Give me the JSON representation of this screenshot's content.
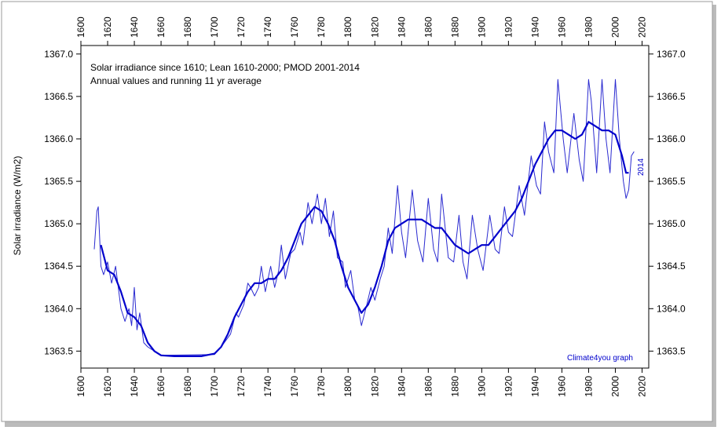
{
  "chart_data": {
    "type": "line",
    "subtitle": [
      "Solar irradiance since 1610; Lean 1610-2000; PMOD 2001-2014",
      "Annual values and running 11 yr average"
    ],
    "ylabel": "Solar irradiance (W/m2)",
    "annotations": [
      "Climate4you graph",
      "2014"
    ],
    "xlim": [
      1600,
      2025
    ],
    "xticks": [
      1600,
      1620,
      1640,
      1660,
      1680,
      1700,
      1720,
      1740,
      1760,
      1780,
      1800,
      1820,
      1840,
      1860,
      1880,
      1900,
      1920,
      1940,
      1960,
      1980,
      2000,
      2020
    ],
    "ylim": [
      1363.3,
      1367.1
    ],
    "yticks": [
      1363.5,
      {
        "value": 1364,
        "label": "1364.0"
      },
      1364.5,
      {
        "value": 1365,
        "label": "1365.0"
      },
      1365.5,
      {
        "value": 1366,
        "label": "1366.0"
      },
      1366.5,
      {
        "value": 1367,
        "label": "1367.0"
      }
    ],
    "series": [
      {
        "color": "#2a2ad0",
        "width": 1,
        "x": [
          1610,
          1612,
          1613,
          1615,
          1617,
          1620,
          1623,
          1626,
          1630,
          1633,
          1636,
          1638,
          1640,
          1642,
          1644,
          1647,
          1650,
          1655,
          1660,
          1700,
          1705,
          1712,
          1716,
          1718,
          1722,
          1725,
          1727,
          1730,
          1733,
          1735,
          1738,
          1742,
          1745,
          1748,
          1750,
          1753,
          1757,
          1760,
          1764,
          1766,
          1770,
          1773,
          1777,
          1780,
          1783,
          1786,
          1789,
          1792,
          1796,
          1798,
          1802,
          1805,
          1807,
          1810,
          1814,
          1817,
          1820,
          1824,
          1827,
          1830,
          1833,
          1837,
          1840,
          1843,
          1848,
          1852,
          1856,
          1860,
          1864,
          1867,
          1870,
          1875,
          1879,
          1883,
          1886,
          1889,
          1893,
          1897,
          1901,
          1906,
          1910,
          1913,
          1917,
          1920,
          1923,
          1928,
          1932,
          1937,
          1941,
          1944,
          1947,
          1950,
          1954,
          1957,
          1961,
          1964,
          1969,
          1973,
          1976,
          1980,
          1982,
          1986,
          1990,
          1993,
          1996,
          2000,
          2003,
          2006,
          2008,
          2010,
          2012,
          2014
        ],
        "values": [
          1364.7,
          1365.15,
          1365.2,
          1364.5,
          1364.4,
          1364.55,
          1364.3,
          1364.5,
          1364.0,
          1363.85,
          1364.0,
          1363.8,
          1364.25,
          1363.75,
          1363.95,
          1363.6,
          1363.55,
          1363.5,
          1363.45,
          1363.46,
          1363.55,
          1363.7,
          1363.95,
          1363.9,
          1364.05,
          1364.3,
          1364.25,
          1364.15,
          1364.25,
          1364.5,
          1364.2,
          1364.5,
          1364.25,
          1364.45,
          1364.75,
          1364.35,
          1364.65,
          1364.7,
          1364.9,
          1364.75,
          1365.25,
          1365.0,
          1365.35,
          1365.0,
          1365.3,
          1364.85,
          1365.15,
          1364.6,
          1364.55,
          1364.25,
          1364.45,
          1364.1,
          1364.05,
          1363.8,
          1364.05,
          1364.25,
          1364.1,
          1364.35,
          1364.5,
          1364.95,
          1364.65,
          1365.45,
          1364.9,
          1364.6,
          1365.4,
          1364.8,
          1364.55,
          1365.3,
          1364.7,
          1364.55,
          1365.35,
          1364.6,
          1364.55,
          1365.1,
          1364.55,
          1364.35,
          1365.1,
          1364.7,
          1364.45,
          1365.1,
          1364.7,
          1364.65,
          1365.2,
          1364.9,
          1364.85,
          1365.45,
          1365.1,
          1365.8,
          1365.45,
          1365.35,
          1366.2,
          1365.85,
          1365.6,
          1366.7,
          1366.0,
          1365.6,
          1366.3,
          1365.75,
          1365.5,
          1366.7,
          1366.45,
          1365.6,
          1366.7,
          1366.0,
          1365.6,
          1366.7,
          1366.0,
          1365.5,
          1365.3,
          1365.4,
          1365.8,
          1365.85
        ]
      },
      {
        "color": "#0000cc",
        "width": 2.2,
        "x": [
          1615,
          1620,
          1625,
          1630,
          1635,
          1640,
          1645,
          1650,
          1655,
          1660,
          1670,
          1680,
          1690,
          1700,
          1705,
          1710,
          1715,
          1720,
          1725,
          1730,
          1735,
          1740,
          1745,
          1750,
          1755,
          1760,
          1765,
          1770,
          1775,
          1780,
          1785,
          1790,
          1795,
          1800,
          1805,
          1810,
          1815,
          1820,
          1825,
          1830,
          1835,
          1840,
          1845,
          1850,
          1855,
          1860,
          1865,
          1870,
          1875,
          1880,
          1885,
          1890,
          1895,
          1900,
          1905,
          1910,
          1915,
          1920,
          1925,
          1930,
          1935,
          1940,
          1945,
          1950,
          1955,
          1960,
          1965,
          1970,
          1975,
          1980,
          1985,
          1990,
          1995,
          2000,
          2005,
          2008,
          2010
        ],
        "values": [
          1364.75,
          1364.45,
          1364.4,
          1364.2,
          1363.95,
          1363.9,
          1363.8,
          1363.6,
          1363.5,
          1363.45,
          1363.44,
          1363.44,
          1363.44,
          1363.47,
          1363.55,
          1363.7,
          1363.9,
          1364.05,
          1364.2,
          1364.3,
          1364.3,
          1364.35,
          1364.35,
          1364.45,
          1364.6,
          1364.8,
          1365.0,
          1365.1,
          1365.2,
          1365.15,
          1365.0,
          1364.8,
          1364.5,
          1364.25,
          1364.1,
          1363.95,
          1364.05,
          1364.25,
          1364.5,
          1364.8,
          1364.95,
          1365.0,
          1365.05,
          1365.05,
          1365.05,
          1365.0,
          1364.95,
          1364.95,
          1364.85,
          1364.75,
          1364.7,
          1364.65,
          1364.7,
          1364.75,
          1364.75,
          1364.85,
          1364.95,
          1365.05,
          1365.15,
          1365.3,
          1365.5,
          1365.7,
          1365.85,
          1366.0,
          1366.1,
          1366.1,
          1366.05,
          1366.0,
          1366.05,
          1366.2,
          1366.15,
          1366.1,
          1366.1,
          1366.05,
          1365.8,
          1365.6,
          1365.6
        ]
      }
    ]
  }
}
